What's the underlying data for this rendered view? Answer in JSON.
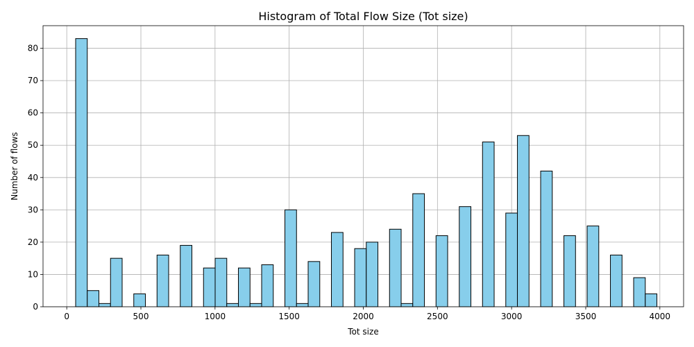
{
  "chart_data": {
    "type": "bar",
    "title": "Histogram of Total Flow Size (Tot size)",
    "xlabel": "Tot size",
    "ylabel": "Number of flows",
    "xlim": [
      -160,
      4160
    ],
    "ylim": [
      0,
      87
    ],
    "xticks": [
      0,
      500,
      1000,
      1500,
      2000,
      2500,
      3000,
      3500,
      4000
    ],
    "yticks": [
      0,
      10,
      20,
      30,
      40,
      50,
      60,
      70,
      80
    ],
    "grid": true,
    "bar_color": "#87ceeb",
    "edge_color": "#000000",
    "bin_width": 78.4,
    "bins": [
      {
        "x": 60,
        "count": 83
      },
      {
        "x": 138.4,
        "count": 5
      },
      {
        "x": 216.8,
        "count": 1
      },
      {
        "x": 295.2,
        "count": 15
      },
      {
        "x": 452,
        "count": 4
      },
      {
        "x": 608.8,
        "count": 16
      },
      {
        "x": 765.6,
        "count": 19
      },
      {
        "x": 922.4,
        "count": 12
      },
      {
        "x": 1000.8,
        "count": 15
      },
      {
        "x": 1079.2,
        "count": 1
      },
      {
        "x": 1157.6,
        "count": 12
      },
      {
        "x": 1236,
        "count": 1
      },
      {
        "x": 1314.4,
        "count": 13
      },
      {
        "x": 1471.2,
        "count": 30
      },
      {
        "x": 1549.6,
        "count": 1
      },
      {
        "x": 1628,
        "count": 14
      },
      {
        "x": 1784.8,
        "count": 23
      },
      {
        "x": 1941.6,
        "count": 18
      },
      {
        "x": 2020,
        "count": 20
      },
      {
        "x": 2176.8,
        "count": 24
      },
      {
        "x": 2255.2,
        "count": 1
      },
      {
        "x": 2333.6,
        "count": 35
      },
      {
        "x": 2490.4,
        "count": 22
      },
      {
        "x": 2647.2,
        "count": 31
      },
      {
        "x": 2804,
        "count": 51
      },
      {
        "x": 2960.8,
        "count": 29
      },
      {
        "x": 3039.2,
        "count": 53
      },
      {
        "x": 3196,
        "count": 42
      },
      {
        "x": 3352.8,
        "count": 22
      },
      {
        "x": 3509.6,
        "count": 25
      },
      {
        "x": 3666.4,
        "count": 16
      },
      {
        "x": 3823.2,
        "count": 9
      },
      {
        "x": 3901.6,
        "count": 4
      }
    ]
  }
}
